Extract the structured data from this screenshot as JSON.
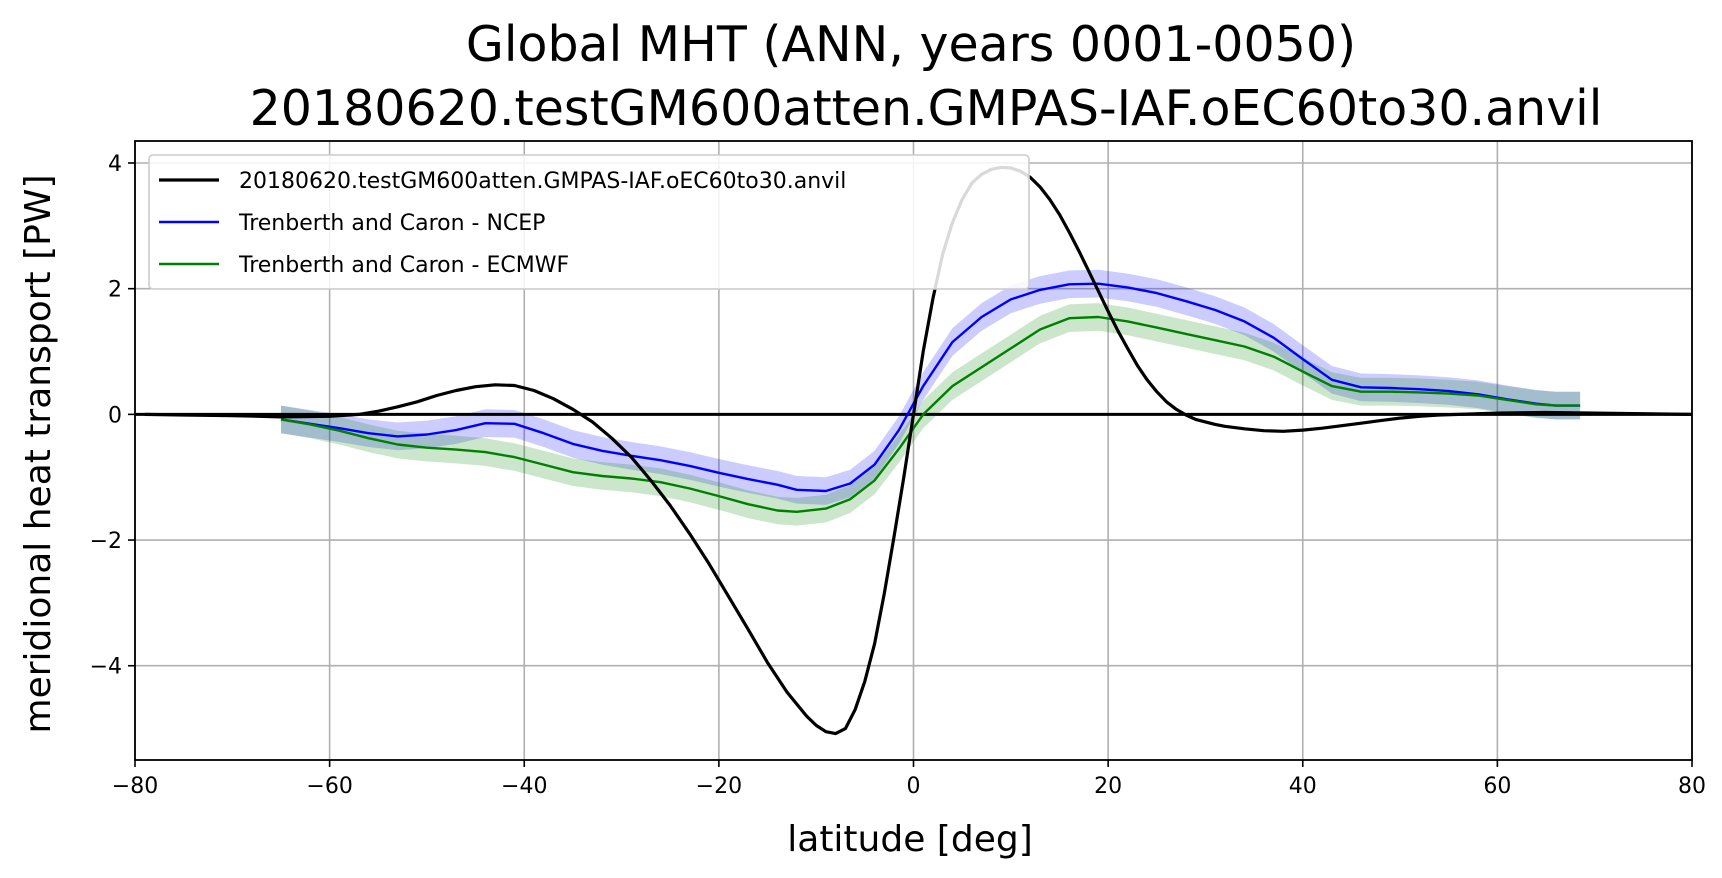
{
  "chart_data": {
    "type": "line",
    "title": "Global MHT (ANN, years 0001-0050)",
    "subtitle": "20180620.testGM600atten.GMPAS-IAF.oEC60to30.anvil",
    "xlabel": "latitude [deg]",
    "ylabel": "meridional heat transport [PW]",
    "xlim": [
      -80,
      80
    ],
    "ylim": [
      -5.5,
      4.35
    ],
    "xticks": [
      -80,
      -60,
      -40,
      -20,
      0,
      20,
      40,
      60,
      80
    ],
    "xtick_labels": [
      "−80",
      "−60",
      "−40",
      "−20",
      "0",
      "20",
      "40",
      "60",
      "80"
    ],
    "yticks": [
      -4,
      -2,
      0,
      2,
      4
    ],
    "ytick_labels": [
      "−4",
      "−2",
      "0",
      "2",
      "4"
    ],
    "grid": true,
    "legend_position": "top-left",
    "zero_line": true,
    "series": [
      {
        "name": "20180620.testGM600atten.GMPAS-IAF.oEC60to30.anvil",
        "color": "#000000",
        "x": [
          -79,
          -75,
          -70,
          -65,
          -60,
          -57,
          -55,
          -53,
          -51,
          -49,
          -47,
          -45,
          -43,
          -41,
          -39,
          -37,
          -35,
          -33,
          -31,
          -29,
          -27,
          -25,
          -23,
          -21,
          -19,
          -17,
          -15,
          -13,
          -11,
          -10,
          -9,
          -8,
          -7,
          -6,
          -5,
          -4,
          -3,
          -2,
          -1,
          0,
          1,
          2,
          3,
          4,
          5,
          6,
          7,
          8,
          9,
          10,
          11,
          12,
          13,
          14,
          15,
          16,
          17,
          18,
          19,
          20,
          21,
          22,
          23,
          24,
          25,
          26,
          27,
          28,
          29,
          30,
          31,
          32,
          34,
          36,
          38,
          40,
          42,
          44,
          46,
          48,
          50,
          52,
          54,
          56,
          58,
          60,
          65,
          70,
          75,
          80
        ],
        "y": [
          0.0,
          -0.01,
          -0.02,
          -0.04,
          -0.03,
          0.0,
          0.05,
          0.12,
          0.2,
          0.3,
          0.38,
          0.44,
          0.47,
          0.46,
          0.38,
          0.25,
          0.08,
          -0.12,
          -0.38,
          -0.68,
          -1.05,
          -1.45,
          -1.9,
          -2.38,
          -2.9,
          -3.42,
          -3.95,
          -4.42,
          -4.8,
          -4.95,
          -5.05,
          -5.08,
          -5.0,
          -4.7,
          -4.25,
          -3.65,
          -2.85,
          -1.95,
          -1.0,
          0.0,
          1.0,
          1.85,
          2.55,
          3.05,
          3.42,
          3.68,
          3.82,
          3.9,
          3.93,
          3.92,
          3.87,
          3.77,
          3.62,
          3.42,
          3.18,
          2.9,
          2.6,
          2.28,
          1.96,
          1.64,
          1.33,
          1.05,
          0.78,
          0.55,
          0.36,
          0.2,
          0.08,
          -0.01,
          -0.08,
          -0.12,
          -0.16,
          -0.19,
          -0.23,
          -0.26,
          -0.27,
          -0.25,
          -0.22,
          -0.18,
          -0.14,
          -0.1,
          -0.06,
          -0.03,
          -0.01,
          0.0,
          0.01,
          0.02,
          0.03,
          0.02,
          0.01,
          0.0
        ]
      },
      {
        "name": "Trenberth and Caron - NCEP",
        "color": "#0000ff",
        "band_color": "#0000ff",
        "band_opacity": 0.2,
        "x": [
          -65,
          -62,
          -59,
          -56,
          -53,
          -50,
          -47,
          -44,
          -41,
          -38,
          -35,
          -32,
          -29,
          -26,
          -23,
          -20,
          -17,
          -14,
          -12,
          -9,
          -6.5,
          -4,
          -1.5,
          1,
          4,
          7,
          10,
          13,
          16,
          19,
          22,
          25,
          28,
          31,
          34,
          37,
          40,
          43,
          46,
          49,
          52,
          55,
          58,
          61,
          64,
          66,
          68.5
        ],
        "y": [
          -0.08,
          -0.15,
          -0.22,
          -0.3,
          -0.35,
          -0.32,
          -0.25,
          -0.14,
          -0.15,
          -0.3,
          -0.47,
          -0.58,
          -0.66,
          -0.73,
          -0.82,
          -0.93,
          -1.03,
          -1.12,
          -1.2,
          -1.22,
          -1.1,
          -0.8,
          -0.25,
          0.45,
          1.15,
          1.55,
          1.83,
          1.98,
          2.07,
          2.08,
          2.02,
          1.93,
          1.8,
          1.66,
          1.48,
          1.22,
          0.88,
          0.55,
          0.43,
          0.42,
          0.4,
          0.37,
          0.32,
          0.24,
          0.17,
          0.14,
          0.14
        ],
        "band_halfwidth": 0.22
      },
      {
        "name": "Trenberth and Caron - ECMWF",
        "color": "#008000",
        "band_color": "#008000",
        "band_opacity": 0.2,
        "x": [
          -65,
          -62,
          -59,
          -56,
          -53,
          -50,
          -47,
          -44,
          -41,
          -38,
          -35,
          -32,
          -29,
          -26,
          -23,
          -20,
          -17,
          -14,
          -12,
          -9,
          -6.5,
          -4,
          -1.5,
          1,
          4,
          7,
          10,
          13,
          16,
          19,
          22,
          25,
          28,
          31,
          34,
          37,
          40,
          43,
          46,
          49,
          52,
          55,
          58,
          61,
          64,
          66,
          68.5
        ],
        "y": [
          -0.08,
          -0.16,
          -0.26,
          -0.38,
          -0.48,
          -0.53,
          -0.56,
          -0.6,
          -0.68,
          -0.8,
          -0.92,
          -0.98,
          -1.02,
          -1.08,
          -1.18,
          -1.3,
          -1.43,
          -1.53,
          -1.55,
          -1.5,
          -1.35,
          -1.05,
          -0.55,
          0.0,
          0.45,
          0.75,
          1.05,
          1.35,
          1.53,
          1.55,
          1.48,
          1.38,
          1.28,
          1.18,
          1.08,
          0.92,
          0.68,
          0.45,
          0.36,
          0.36,
          0.35,
          0.33,
          0.3,
          0.23,
          0.16,
          0.14,
          0.14
        ],
        "band_halfwidth": 0.22
      }
    ]
  }
}
